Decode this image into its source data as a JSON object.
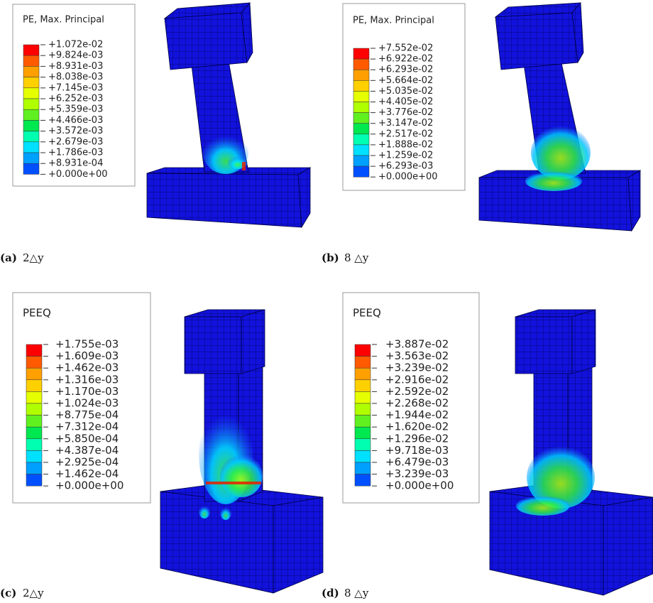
{
  "panels": [
    {
      "legend": {
        "title": "PE, Max. Principal",
        "labels": [
          "+1.072e-02",
          "+9.824e-03",
          "+8.931e-03",
          "+8.038e-03",
          "+7.145e-03",
          "+6.252e-03",
          "+5.359e-03",
          "+4.466e-03",
          "+3.572e-03",
          "+2.679e-03",
          "+1.786e-03",
          "+8.931e-04",
          "+0.000e+00"
        ]
      },
      "caption": {
        "label": "(a)",
        "text": "2△y"
      }
    },
    {
      "legend": {
        "title": "PE, Max. Principal",
        "labels": [
          "+7.552e-02",
          "+6.922e-02",
          "+6.293e-02",
          "+5.664e-02",
          "+5.035e-02",
          "+4.405e-02",
          "+3.776e-02",
          "+3.147e-02",
          "+2.517e-02",
          "+1.888e-02",
          "+1.259e-02",
          "+6.293e-03",
          "+0.000e+00"
        ]
      },
      "caption": {
        "label": "(b)",
        "text": "8 △y"
      }
    },
    {
      "legend": {
        "title": "PEEQ",
        "labels": [
          "+1.755e-03",
          "+1.609e-03",
          "+1.462e-03",
          "+1.316e-03",
          "+1.170e-03",
          "+1.024e-03",
          "+8.775e-04",
          "+7.312e-04",
          "+5.850e-04",
          "+4.387e-04",
          "+2.925e-04",
          "+1.462e-04",
          "+0.000e+00"
        ]
      },
      "caption": {
        "label": "(c)",
        "text": "2△y"
      }
    },
    {
      "legend": {
        "title": "PEEQ",
        "labels": [
          "+3.887e-02",
          "+3.563e-02",
          "+3.239e-02",
          "+2.916e-02",
          "+2.592e-02",
          "+2.268e-02",
          "+1.944e-02",
          "+1.620e-02",
          "+1.296e-02",
          "+9.718e-03",
          "+6.479e-03",
          "+3.239e-03",
          "+0.000e+00"
        ]
      },
      "caption": {
        "label": "(d)",
        "text": "8 △y"
      }
    }
  ]
}
